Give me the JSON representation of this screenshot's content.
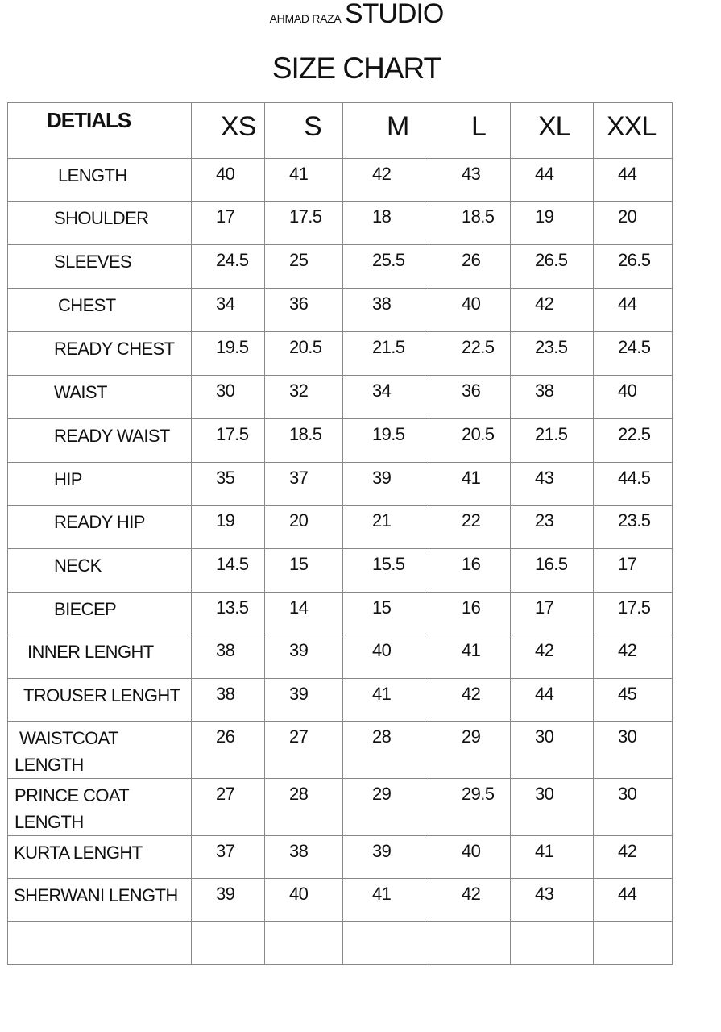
{
  "brand": {
    "prefix": "AHMAD RAZA",
    "name": "STUDIO"
  },
  "title": "SIZE CHART",
  "table": {
    "header_label": "DETIALS",
    "sizes": [
      "XS",
      "S",
      "M",
      "L",
      "XL",
      "XXL"
    ],
    "rows": [
      {
        "label": "LENGTH",
        "values": [
          "40",
          "41",
          "42",
          "43",
          "44",
          "44"
        ]
      },
      {
        "label": "SHOULDER",
        "values": [
          "17",
          "17.5",
          "18",
          "18.5",
          "19",
          "20"
        ]
      },
      {
        "label": "SLEEVES",
        "values": [
          "24.5",
          "25",
          "25.5",
          "26",
          "26.5",
          "26.5"
        ]
      },
      {
        "label": "CHEST",
        "values": [
          "34",
          "36",
          "38",
          "40",
          "42",
          "44"
        ]
      },
      {
        "label": "READY CHEST",
        "values": [
          "19.5",
          "20.5",
          "21.5",
          "22.5",
          "23.5",
          "24.5"
        ]
      },
      {
        "label": "WAIST",
        "values": [
          "30",
          "32",
          "34",
          "36",
          "38",
          "40"
        ]
      },
      {
        "label": "READY WAIST",
        "values": [
          "17.5",
          "18.5",
          "19.5",
          "20.5",
          "21.5",
          "22.5"
        ]
      },
      {
        "label": "HIP",
        "values": [
          "35",
          "37",
          "39",
          "41",
          "43",
          "44.5"
        ]
      },
      {
        "label": "READY HIP",
        "values": [
          "19",
          "20",
          "21",
          "22",
          "23",
          "23.5"
        ]
      },
      {
        "label": "NECK",
        "values": [
          "14.5",
          "15",
          "15.5",
          "16",
          "16.5",
          "17"
        ]
      },
      {
        "label": "BIECEP",
        "values": [
          "13.5",
          "14",
          "15",
          "16",
          "17",
          "17.5"
        ]
      },
      {
        "label": "INNER LENGHT",
        "values": [
          "38",
          "39",
          "40",
          "41",
          "42",
          "42"
        ]
      },
      {
        "label": "TROUSER LENGHT",
        "values": [
          "38",
          "39",
          "41",
          "42",
          "44",
          "45"
        ]
      },
      {
        "label": "WAISTCOAT LENGTH",
        "values": [
          "26",
          "27",
          "28",
          "29",
          "30",
          "30"
        ]
      },
      {
        "label": "PRINCE COAT LENGTH",
        "values": [
          "27",
          "28",
          "29",
          "29.5",
          "30",
          "30"
        ]
      },
      {
        "label": "KURTA LENGHT",
        "values": [
          "37",
          "38",
          "39",
          "40",
          "41",
          "42"
        ]
      },
      {
        "label": "SHERWANI LENGTH",
        "values": [
          "39",
          "40",
          "41",
          "42",
          "43",
          "44"
        ]
      },
      {
        "label": "",
        "values": [
          "",
          "",
          "",
          "",
          "",
          ""
        ]
      }
    ]
  }
}
